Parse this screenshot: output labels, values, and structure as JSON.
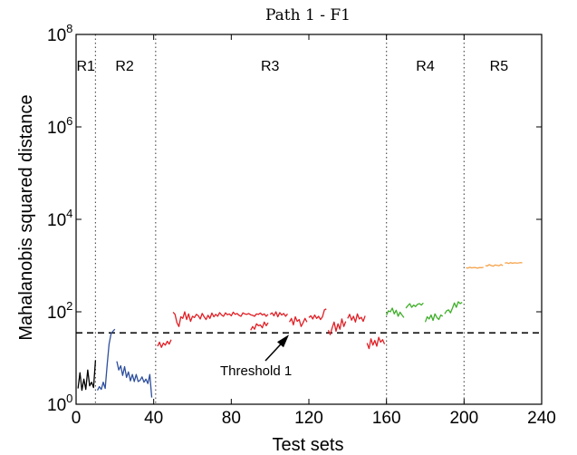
{
  "chart_data": {
    "type": "line",
    "title": "Path 1 - F1",
    "xlabel": "Test sets",
    "ylabel": "Mahalanobis squared distance",
    "xlim": [
      0,
      240
    ],
    "ylim_log10": [
      0,
      8
    ],
    "yscale": "log",
    "xticks": [
      "0",
      "40",
      "80",
      "120",
      "160",
      "200",
      "240"
    ],
    "xtick_values": [
      0,
      40,
      80,
      120,
      160,
      200,
      240
    ],
    "ytick_values": [
      0,
      2,
      4,
      6,
      8
    ],
    "ytick_base": "10",
    "ytick_exps": [
      "0",
      "2",
      "4",
      "6",
      "8"
    ],
    "grid": false,
    "region_boundaries": [
      10,
      41,
      160,
      200
    ],
    "regions": [
      {
        "label": "R1",
        "x": 5
      },
      {
        "label": "R2",
        "x": 25
      },
      {
        "label": "R3",
        "x": 100
      },
      {
        "label": "R4",
        "x": 180
      },
      {
        "label": "R5",
        "x": 218
      }
    ],
    "threshold": {
      "value": 35,
      "label": "Threshold 1"
    },
    "series": [
      {
        "color": "#000000",
        "segments": [
          {
            "x0": 1,
            "values": [
              2.2,
              4.8,
              2.0,
              3.5,
              2.1,
              5.5,
              2.5,
              3.0,
              2.3,
              9.0
            ]
          }
        ]
      },
      {
        "color": "#2e4f9e",
        "segments": [
          {
            "x0": 11,
            "values": [
              2.0,
              2.4,
              2.1,
              3.0,
              2.2,
              7.0,
              20,
              33,
              38,
              42
            ]
          },
          {
            "x0": 21,
            "values": [
              8.5,
              5.5,
              6.8,
              4.2,
              6.5,
              3.8,
              5.0,
              3.2,
              4.4,
              3.1,
              4.4,
              3.1,
              3.3,
              3.9,
              3.0,
              3.5,
              2.8,
              4.4,
              1.4
            ]
          }
        ]
      },
      {
        "color": "#e01f25",
        "segments": [
          {
            "x0": 42,
            "values": [
              18,
              22,
              17,
              21,
              19,
              23,
              20,
              25
            ]
          },
          {
            "x0": 50,
            "values": [
              98,
              88,
              58,
              48,
              78,
              72,
              100,
              68,
              90,
              62,
              80,
              75,
              88,
              82,
              70,
              92,
              78,
              68,
              84,
              72,
              94,
              78,
              88,
              80,
              96,
              85,
              80,
              95,
              86,
              90,
              82,
              98,
              88,
              92,
              84,
              80,
              95,
              90,
              88,
              92,
              86,
              84,
              80,
              90,
              88,
              94,
              85,
              90,
              80,
              88
            ]
          },
          {
            "x0": 90,
            "values": [
              40,
              48,
              42,
              55,
              50,
              52,
              45,
              60,
              50,
              58
            ]
          },
          {
            "x0": 100,
            "values": [
              88,
              95,
              82,
              100,
              78,
              96,
              85,
              92,
              80,
              90
            ]
          },
          {
            "x0": 110,
            "values": [
              60,
              72,
              52,
              78,
              62,
              68,
              48,
              58,
              72,
              60
            ]
          },
          {
            "x0": 120,
            "values": [
              75,
              82,
              70,
              85,
              72,
              80,
              68,
              78,
              110,
              115
            ]
          },
          {
            "x0": 130,
            "values": [
              40,
              32,
              45,
              60,
              38,
              55,
              42,
              70,
              48,
              62
            ]
          },
          {
            "x0": 140,
            "values": [
              72,
              88,
              66,
              80,
              60,
              90,
              70,
              76,
              62,
              82
            ]
          },
          {
            "x0": 150,
            "values": [
              21,
              16,
              26,
              19,
              24,
              18,
              28,
              22,
              25,
              20
            ]
          }
        ]
      },
      {
        "color": "#3fae2a",
        "segments": [
          {
            "x0": 160,
            "values": [
              85,
              105,
              100,
              120,
              90,
              108,
              80,
              98,
              85,
              75
            ]
          },
          {
            "x0": 170,
            "values": [
              120,
              135,
              150,
              125,
              140,
              130,
              145,
              150,
              140,
              155
            ]
          },
          {
            "x0": 180,
            "values": [
              60,
              78,
              70,
              85,
              65,
              90,
              75,
              68,
              85,
              80
            ]
          },
          {
            "x0": 190,
            "values": [
              90,
              105,
              110,
              95,
              120,
              155,
              125,
              165,
              150,
              160
            ]
          }
        ]
      },
      {
        "color": "#f5a24a",
        "segments": [
          {
            "x0": 201,
            "values": [
              900,
              880,
              920,
              890,
              910,
              900,
              880,
              910,
              900,
              920
            ]
          },
          {
            "x0": 211,
            "values": [
              1000,
              980,
              1050,
              1000,
              970,
              1030,
              1010,
              990,
              1050,
              1000
            ]
          },
          {
            "x0": 221,
            "values": [
              1130,
              1150,
              1110,
              1160,
              1120,
              1150,
              1130,
              1140,
              1160,
              1150
            ]
          }
        ]
      }
    ]
  }
}
